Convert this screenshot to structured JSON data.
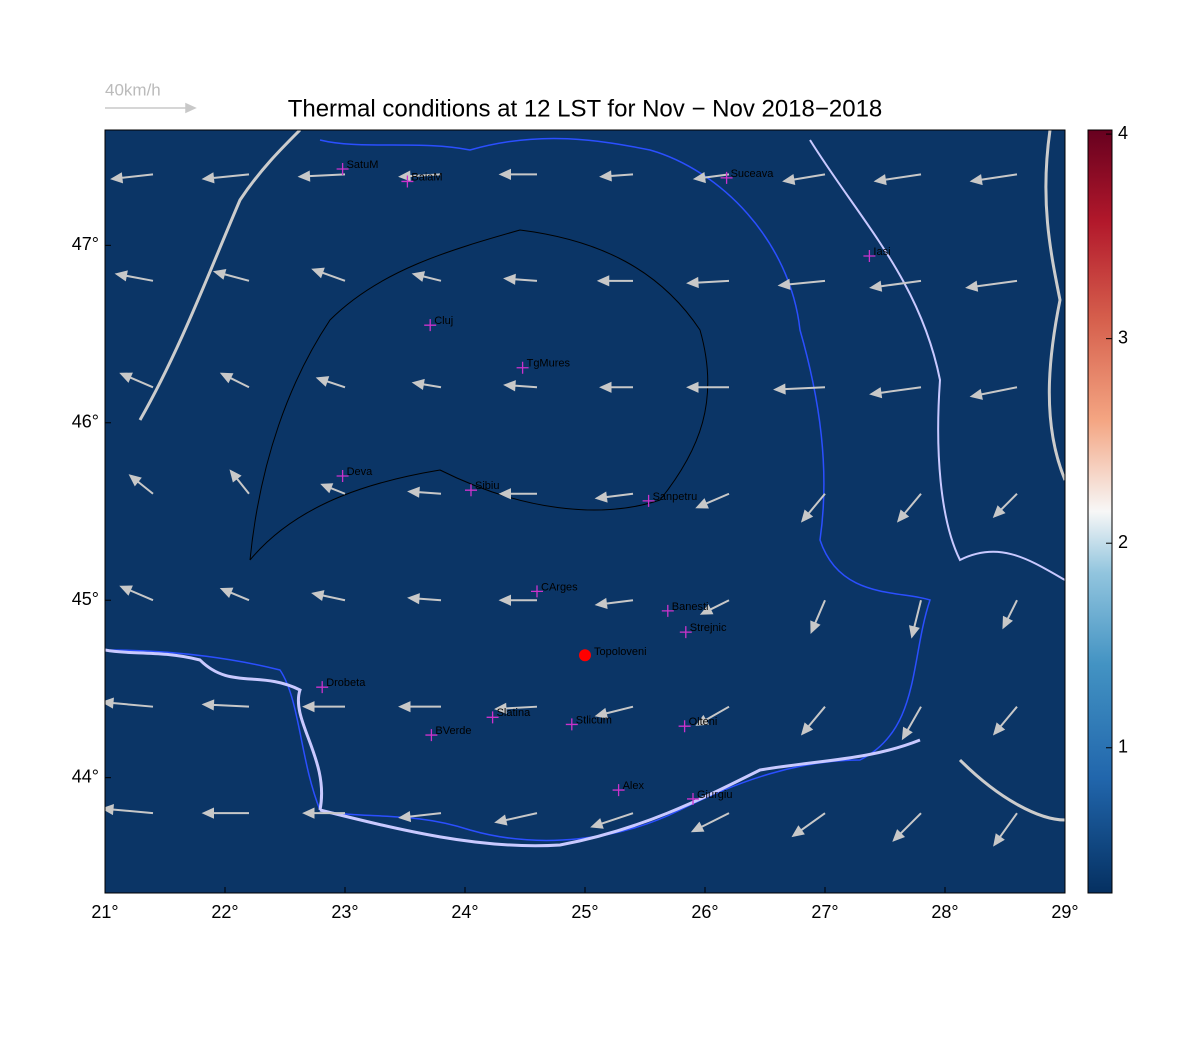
{
  "map": {
    "title": "Thermal conditions at 12 LST for Nov − Nov  2018−2018",
    "xlim": [
      21,
      29
    ],
    "ylim": [
      43.35,
      47.65
    ],
    "xticks": [
      {
        "value": 21,
        "label": "21°"
      },
      {
        "value": 22,
        "label": "22°"
      },
      {
        "value": 23,
        "label": "23°"
      },
      {
        "value": 24,
        "label": "24°"
      },
      {
        "value": 25,
        "label": "25°"
      },
      {
        "value": 26,
        "label": "26°"
      },
      {
        "value": 27,
        "label": "27°"
      },
      {
        "value": 28,
        "label": "28°"
      },
      {
        "value": 29,
        "label": "29°"
      }
    ],
    "yticks": [
      {
        "value": 44,
        "label": "44°"
      },
      {
        "value": 45,
        "label": "45°"
      },
      {
        "value": 46,
        "label": "46°"
      },
      {
        "value": 47,
        "label": "47°"
      }
    ],
    "colorbar": {
      "clim": [
        0.29,
        4.02
      ],
      "ticks": [
        1,
        2,
        3,
        4
      ]
    },
    "scale_arrow": {
      "value": 40,
      "label": "40km/h"
    },
    "stations": [
      {
        "name": "SatuM",
        "lon": 22.98,
        "lat": 47.43
      },
      {
        "name": "BaiaM",
        "lon": 23.52,
        "lat": 47.36
      },
      {
        "name": "Suceava",
        "lon": 26.18,
        "lat": 47.38
      },
      {
        "name": "Iasi",
        "lon": 27.37,
        "lat": 46.94
      },
      {
        "name": "Cluj",
        "lon": 23.71,
        "lat": 46.55
      },
      {
        "name": "TgMures",
        "lon": 24.48,
        "lat": 46.31
      },
      {
        "name": "Deva",
        "lon": 22.98,
        "lat": 45.7
      },
      {
        "name": "Sibiu",
        "lon": 24.05,
        "lat": 45.62
      },
      {
        "name": "Sanpetru",
        "lon": 25.53,
        "lat": 45.56
      },
      {
        "name": "CArges",
        "lon": 24.6,
        "lat": 45.05
      },
      {
        "name": "Banesti",
        "lon": 25.69,
        "lat": 44.94
      },
      {
        "name": "Strejnic",
        "lon": 25.84,
        "lat": 44.82
      },
      {
        "name": "Drobeta",
        "lon": 22.81,
        "lat": 44.51
      },
      {
        "name": "Slatina",
        "lon": 24.23,
        "lat": 44.34
      },
      {
        "name": "Stlicum",
        "lon": 24.89,
        "lat": 44.3
      },
      {
        "name": "BVerde",
        "lon": 23.72,
        "lat": 44.24
      },
      {
        "name": "Olteni",
        "lon": 25.83,
        "lat": 44.29
      },
      {
        "name": "Alex",
        "lon": 25.28,
        "lat": 43.93
      },
      {
        "name": "Giurgiu",
        "lon": 25.9,
        "lat": 43.88
      }
    ],
    "site": {
      "name": "Topoloveni",
      "lon": 25.0,
      "lat": 44.69,
      "color": "#ff0000"
    },
    "wind": {
      "lon": [
        21.4,
        22.2,
        23.0,
        23.8,
        24.6,
        25.4,
        26.2,
        27.0,
        27.8,
        28.6
      ],
      "lat": [
        47.4,
        46.8,
        46.2,
        45.6,
        45.0,
        44.4,
        43.8
      ],
      "u": [
        [
          -18,
          -20,
          -20,
          -18,
          -16,
          -14,
          -15,
          -18,
          -20,
          -20
        ],
        [
          -16,
          -15,
          -14,
          -12,
          -14,
          -15,
          -18,
          -20,
          -22,
          -22
        ],
        [
          -14,
          -12,
          -12,
          -12,
          -14,
          -14,
          -18,
          -22,
          -22,
          -20
        ],
        [
          -10,
          -8,
          -10,
          -14,
          -16,
          -16,
          -14,
          -10,
          -10,
          -10
        ],
        [
          -14,
          -12,
          -14,
          -14,
          -16,
          -16,
          -12,
          -6,
          -4,
          -6
        ],
        [
          -22,
          -20,
          -18,
          -18,
          -18,
          -16,
          -14,
          -10,
          -8,
          -10
        ],
        [
          -22,
          -20,
          -18,
          -18,
          -18,
          -18,
          -16,
          -14,
          -12,
          -10
        ]
      ],
      "v": [
        [
          -2,
          -2,
          -1,
          -1,
          0,
          -1,
          -2,
          -3,
          -3,
          -3
        ],
        [
          3,
          4,
          5,
          3,
          1,
          0,
          -1,
          -2,
          -3,
          -3
        ],
        [
          6,
          6,
          4,
          2,
          1,
          0,
          0,
          -1,
          -3,
          -4
        ],
        [
          8,
          10,
          4,
          1,
          0,
          -2,
          -6,
          -12,
          -12,
          -10
        ],
        [
          6,
          5,
          3,
          1,
          0,
          -2,
          -6,
          -14,
          -16,
          -12
        ],
        [
          2,
          1,
          0,
          0,
          -1,
          -4,
          -8,
          -12,
          -14,
          -12
        ],
        [
          2,
          0,
          0,
          -2,
          -4,
          -6,
          -8,
          -10,
          -12,
          -14
        ]
      ]
    }
  }
}
